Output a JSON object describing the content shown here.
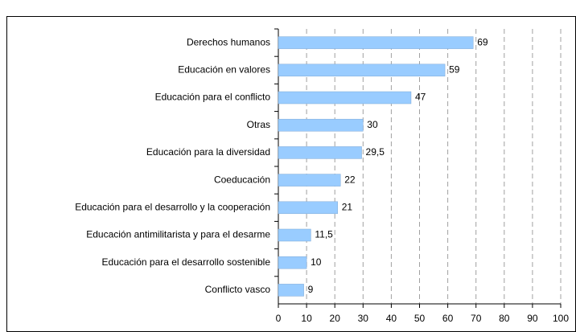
{
  "chart_data": {
    "type": "bar",
    "orientation": "horizontal",
    "categories": [
      "Derechos humanos",
      "Educación en valores",
      "Educación para el conflicto",
      "Otras",
      "Educación para la diversidad",
      "Coeducación",
      "Educación para el desarrollo y la cooperación",
      "Educación antimilitarista y para el desarme",
      "Educación para el desarrollo sostenible",
      "Conflicto vasco"
    ],
    "values": [
      69,
      59,
      47,
      30,
      29.5,
      22,
      21,
      11.5,
      10,
      9
    ],
    "value_labels": [
      "69",
      "59",
      "47",
      "30",
      "29,5",
      "22",
      "21",
      "11,5",
      "10",
      "9"
    ],
    "color": "#99ccff",
    "xlim": [
      0,
      100
    ],
    "xticks": [
      0,
      10,
      20,
      30,
      40,
      50,
      60,
      70,
      80,
      90,
      100
    ],
    "grid": true
  }
}
